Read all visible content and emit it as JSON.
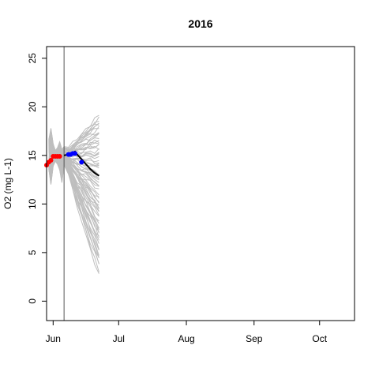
{
  "chart_data": {
    "type": "line",
    "title": "2016",
    "xlabel": "",
    "ylabel": "O2 (mg L-1)",
    "x_unit": "day of year 2016",
    "xlim": [
      150,
      291
    ],
    "ylim": [
      -2,
      26.2
    ],
    "x_ticks": [
      {
        "label": "Jun",
        "x": 153
      },
      {
        "label": "Jul",
        "x": 183
      },
      {
        "label": "Aug",
        "x": 214
      },
      {
        "label": "Sep",
        "x": 245
      },
      {
        "label": "Oct",
        "x": 275
      }
    ],
    "y_ticks": [
      0,
      5,
      10,
      15,
      20,
      25
    ],
    "grid": false,
    "legend": "none",
    "vline_x": 158,
    "colors": {
      "ensemble": "#bebebe",
      "forecast": "#000000",
      "observed_past": "#ff0000",
      "observed_future": "#0000ff",
      "vline": "#555555"
    },
    "ensemble": {
      "lead_in_x": [
        151,
        152,
        153,
        154,
        155,
        156,
        157,
        158
      ],
      "spread_up": [
        1.6,
        2.8,
        1.2,
        0.5,
        0.8,
        1.4,
        0.6,
        0.9
      ],
      "spread_down": [
        1.4,
        3.0,
        1.1,
        0.6,
        0.9,
        1.5,
        2.8,
        1.0
      ],
      "forecast_x": [
        158,
        160,
        162,
        164,
        166,
        168,
        170,
        172,
        174
      ],
      "end_low": 2.6,
      "end_high": 19.1,
      "member_count": 70
    },
    "series": [
      {
        "name": "",
        "role": "observed_past",
        "x": [
          150,
          151,
          152,
          153,
          154,
          155,
          156
        ],
        "y": [
          14.0,
          14.3,
          14.5,
          14.9,
          14.9,
          14.9,
          14.9
        ]
      },
      {
        "name": "",
        "role": "observed_future",
        "x": [
          160,
          161,
          162,
          163,
          166
        ],
        "y": [
          15.1,
          15.1,
          15.2,
          15.2,
          14.3
        ]
      },
      {
        "name": "",
        "role": "forecast_mean",
        "x": [
          158,
          160,
          162,
          163,
          164,
          166,
          168,
          170,
          172,
          174
        ],
        "y": [
          15.0,
          15.1,
          15.3,
          15.4,
          15.1,
          14.6,
          14.1,
          13.6,
          13.2,
          12.9
        ]
      }
    ]
  }
}
